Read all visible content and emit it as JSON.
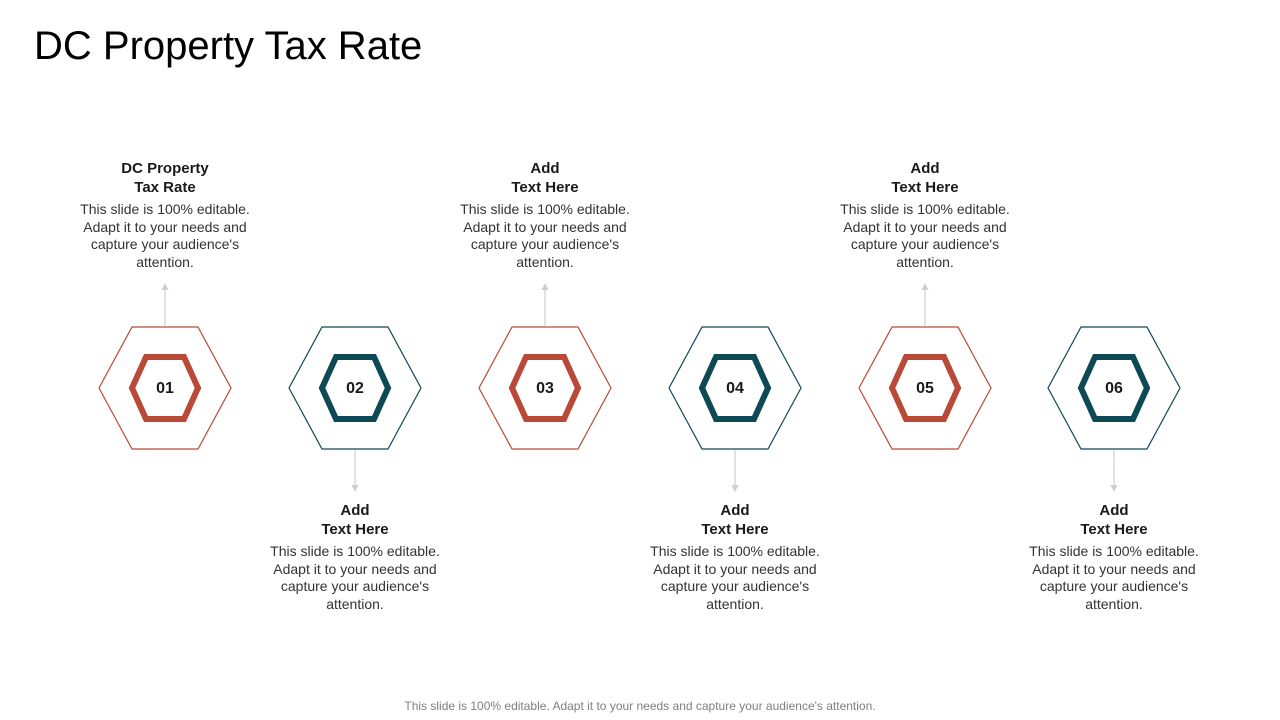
{
  "slide": {
    "title": "DC Property Tax Rate",
    "footer": "This slide is 100% editable. Adapt it to your needs and capture your audience's attention."
  },
  "colors": {
    "red": "#b94a37",
    "teal": "#0e4a55",
    "arrow": "#cfcfcf"
  },
  "steps": [
    {
      "number": "01",
      "title_line1": "DC Property",
      "title_line2": "Tax Rate",
      "body": "This slide is 100% editable. Adapt it to your needs and capture your audience's attention.",
      "position": "top",
      "color": "red"
    },
    {
      "number": "02",
      "title_line1": "Add",
      "title_line2": "Text Here",
      "body": "This slide is 100% editable. Adapt it to your needs and capture your audience's attention.",
      "position": "bottom",
      "color": "teal"
    },
    {
      "number": "03",
      "title_line1": "Add",
      "title_line2": "Text Here",
      "body": "This slide is 100% editable. Adapt it to your needs and capture your audience's attention.",
      "position": "top",
      "color": "red"
    },
    {
      "number": "04",
      "title_line1": "Add",
      "title_line2": "Text Here",
      "body": "This slide is 100% editable. Adapt it to your needs and capture your audience's attention.",
      "position": "bottom",
      "color": "teal"
    },
    {
      "number": "05",
      "title_line1": "Add",
      "title_line2": "Text Here",
      "body": "This slide is 100% editable. Adapt it to your needs and capture your audience's attention.",
      "position": "top",
      "color": "red"
    },
    {
      "number": "06",
      "title_line1": "Add",
      "title_line2": "Text Here",
      "body": "This slide is 100% editable. Adapt it to your needs and capture your audience's attention.",
      "position": "bottom",
      "color": "teal"
    }
  ]
}
